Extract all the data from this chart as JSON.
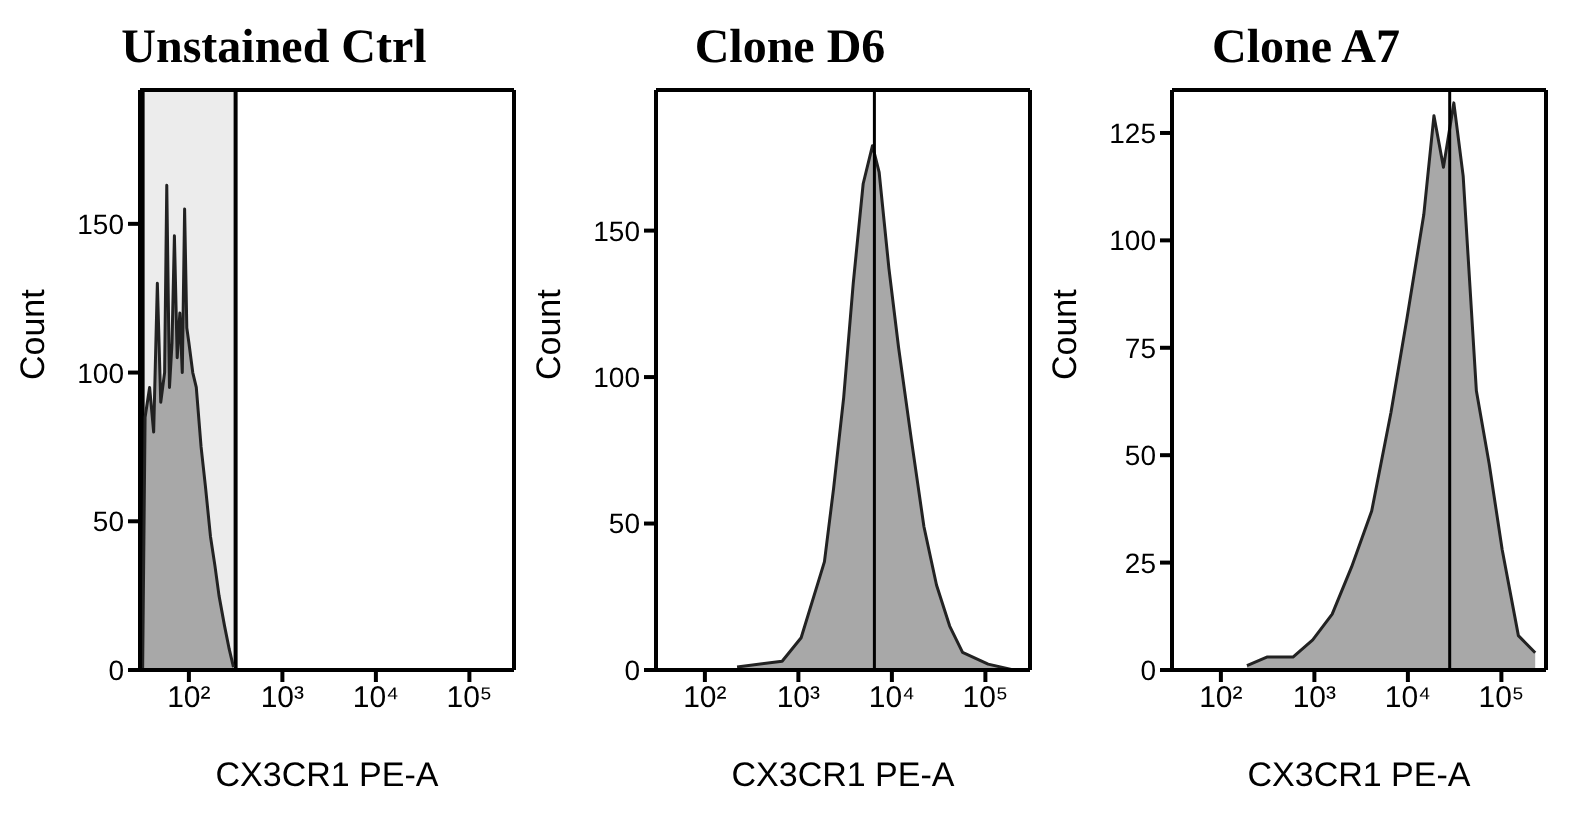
{
  "chart_data": [
    {
      "type": "area",
      "title": "Unstained Ctrl",
      "xlabel": "CX3CR1 PE-A",
      "ylabel": "Count",
      "log": "x",
      "xlim": [
        30,
        300000
      ],
      "xticks": [
        {
          "value": 100,
          "label": "10²"
        },
        {
          "value": 1000,
          "label": "10³"
        },
        {
          "value": 10000,
          "label": "10⁴"
        },
        {
          "value": 100000,
          "label": "10⁵"
        }
      ],
      "ylim": [
        0,
        195
      ],
      "yticks": [
        0,
        50,
        100,
        150
      ],
      "bands": [
        {
          "axis": "x",
          "from": 32,
          "to": 316,
          "color": "#ececec"
        }
      ],
      "series": [
        {
          "color": "#a8a8a8",
          "x": [
            32,
            34,
            38,
            42,
            46,
            50,
            55,
            58,
            62,
            66,
            70,
            75,
            80,
            85,
            90,
            95,
            100,
            110,
            120,
            135,
            150,
            170,
            190,
            210,
            240,
            270,
            300
          ],
          "values": [
            0,
            85,
            95,
            80,
            130,
            90,
            100,
            163,
            95,
            110,
            146,
            105,
            120,
            100,
            155,
            115,
            110,
            100,
            95,
            75,
            62,
            45,
            35,
            25,
            15,
            7,
            1
          ]
        }
      ]
    },
    {
      "type": "area",
      "title": "Clone D6",
      "xlabel": "CX3CR1 PE-A",
      "ylabel": "Count",
      "log": "x",
      "xlim": [
        30,
        300000
      ],
      "xticks": [
        {
          "value": 100,
          "label": "10²"
        },
        {
          "value": 1000,
          "label": "10³"
        },
        {
          "value": 10000,
          "label": "10⁴"
        },
        {
          "value": 100000,
          "label": "10⁵"
        }
      ],
      "ylim": [
        0,
        198
      ],
      "yticks": [
        0,
        50,
        100,
        150
      ],
      "ref_lines": [
        {
          "axis": "x",
          "value": 6500
        }
      ],
      "series": [
        {
          "color": "#a8a8a8",
          "x": [
            221,
            670,
            1070,
            1740,
            1900,
            2380,
            3050,
            3860,
            4930,
            6200,
            7300,
            9300,
            11800,
            16100,
            22000,
            30000,
            41500,
            57000,
            107000,
            200000
          ],
          "values": [
            1,
            3,
            11,
            33,
            37,
            62,
            93,
            132,
            166,
            179,
            170,
            137,
            110,
            79,
            49,
            29,
            15,
            6,
            2,
            0
          ]
        }
      ]
    },
    {
      "type": "area",
      "title": "Clone A7",
      "xlabel": "CX3CR1 PE-A",
      "ylabel": "Count",
      "log": "x",
      "xlim": [
        30,
        300000
      ],
      "xticks": [
        {
          "value": 100,
          "label": "10²"
        },
        {
          "value": 1000,
          "label": "10³"
        },
        {
          "value": 10000,
          "label": "10⁴"
        },
        {
          "value": 100000,
          "label": "10⁵"
        }
      ],
      "ylim": [
        0,
        135
      ],
      "yticks": [
        0,
        25,
        50,
        75,
        100,
        125
      ],
      "ref_lines": [
        {
          "axis": "x",
          "value": 28000
        }
      ],
      "series": [
        {
          "color": "#a8a8a8",
          "x": [
            190,
            310,
            590,
            960,
            1550,
            2500,
            4100,
            6600,
            9800,
            14800,
            19000,
            24000,
            31000,
            39000,
            54000,
            74000,
            102000,
            152000,
            230000
          ],
          "values": [
            1,
            3,
            3,
            7,
            13,
            24,
            37,
            60,
            82,
            106,
            129,
            117,
            132,
            115,
            65,
            48,
            28,
            8,
            4
          ]
        }
      ]
    }
  ]
}
